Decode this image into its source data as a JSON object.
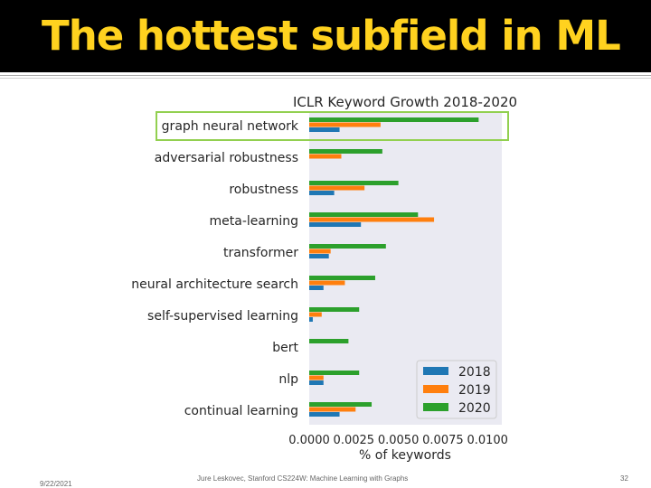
{
  "slide": {
    "title": "The hottest subfield in ML",
    "footer_date": "9/22/2021",
    "footer_credit": "Jure Leskovec, Stanford CS224W: Machine Learning with Graphs",
    "page_number": "32",
    "title_color": "#ffd21f",
    "highlight_color": "#92d050"
  },
  "chart_data": {
    "type": "bar",
    "orientation": "horizontal",
    "title": "ICLR Keyword Growth 2018-2020",
    "xlabel": "% of keywords",
    "ylabel": "",
    "xlim": [
      0,
      0.0108
    ],
    "xticks": [
      "0.0000",
      "0.0025",
      "0.0050",
      "0.0075",
      "0.0100"
    ],
    "grid": false,
    "legend_position": "lower-right",
    "highlighted_category": "graph neural network",
    "categories": [
      "graph neural network",
      "adversarial robustness",
      "robustness",
      "meta-learning",
      "transformer",
      "neural architecture search",
      "self-supervised learning",
      "bert",
      "nlp",
      "continual learning"
    ],
    "series": [
      {
        "name": "2018",
        "color": "#1f77b4",
        "values": [
          0.0017,
          0.0,
          0.0014,
          0.0029,
          0.0011,
          0.0008,
          0.0002,
          0.0,
          0.0008,
          0.0017
        ]
      },
      {
        "name": "2019",
        "color": "#ff7f0e",
        "values": [
          0.004,
          0.0018,
          0.0031,
          0.007,
          0.0012,
          0.002,
          0.0007,
          0.0,
          0.0008,
          0.0026
        ]
      },
      {
        "name": "2020",
        "color": "#2ca02c",
        "values": [
          0.0095,
          0.0041,
          0.005,
          0.0061,
          0.0043,
          0.0037,
          0.0028,
          0.0022,
          0.0028,
          0.0035
        ]
      }
    ]
  }
}
